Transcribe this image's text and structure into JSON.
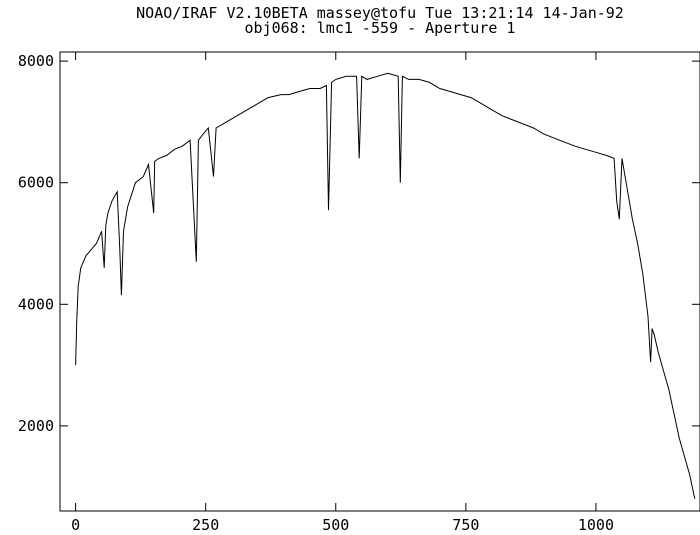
{
  "chart_data": {
    "type": "line",
    "title": "NOAO/IRAF V2.10BETA massey@tofu Tue 13:21:14 14-Jan-92",
    "subtitle": "obj068: lmc1 -559 - Aperture 1",
    "xlabel": "",
    "ylabel": "",
    "xlim": [
      -30,
      1200
    ],
    "ylim": [
      600,
      8150
    ],
    "x_ticks": [
      0,
      250,
      500,
      750,
      1000
    ],
    "y_ticks": [
      2000,
      4000,
      6000,
      8000
    ],
    "grid": false,
    "line_color": "#000000",
    "series": [
      {
        "x": [
          0,
          2,
          5,
          10,
          15,
          20,
          30,
          40,
          50,
          55,
          58,
          62,
          70,
          80,
          85,
          88,
          92,
          100,
          115,
          130,
          140,
          150,
          152,
          160,
          175,
          190,
          205,
          220,
          232,
          236,
          245,
          255,
          265,
          270,
          290,
          310,
          330,
          350,
          370,
          395,
          410,
          430,
          450,
          470,
          482,
          486,
          492,
          500,
          520,
          540,
          545,
          550,
          560,
          580,
          600,
          620,
          624,
          628,
          640,
          660,
          680,
          700,
          720,
          740,
          760,
          780,
          800,
          820,
          850,
          880,
          900,
          930,
          960,
          980,
          1000,
          1020,
          1035,
          1040,
          1045,
          1050,
          1060,
          1070,
          1080,
          1090,
          1100,
          1105,
          1108,
          1112,
          1120,
          1130,
          1140,
          1150,
          1160,
          1170,
          1180,
          1190
        ],
        "y": [
          3000,
          3700,
          4300,
          4600,
          4700,
          4800,
          4900,
          5000,
          5200,
          4600,
          5300,
          5500,
          5700,
          5850,
          4900,
          4150,
          5200,
          5600,
          6000,
          6100,
          6300,
          5500,
          6350,
          6400,
          6450,
          6550,
          6600,
          6700,
          4700,
          6700,
          6800,
          6900,
          6100,
          6900,
          7000,
          7100,
          7200,
          7300,
          7400,
          7450,
          7450,
          7500,
          7550,
          7550,
          7600,
          5550,
          7650,
          7700,
          7750,
          7750,
          6400,
          7750,
          7700,
          7750,
          7800,
          7750,
          6000,
          7750,
          7700,
          7700,
          7650,
          7550,
          7500,
          7450,
          7400,
          7300,
          7200,
          7100,
          7000,
          6900,
          6800,
          6700,
          6600,
          6550,
          6500,
          6450,
          6400,
          5700,
          5400,
          6400,
          5900,
          5400,
          5000,
          4500,
          3800,
          3050,
          3600,
          3500,
          3200,
          2900,
          2600,
          2200,
          1800,
          1500,
          1200,
          800
        ]
      }
    ]
  }
}
